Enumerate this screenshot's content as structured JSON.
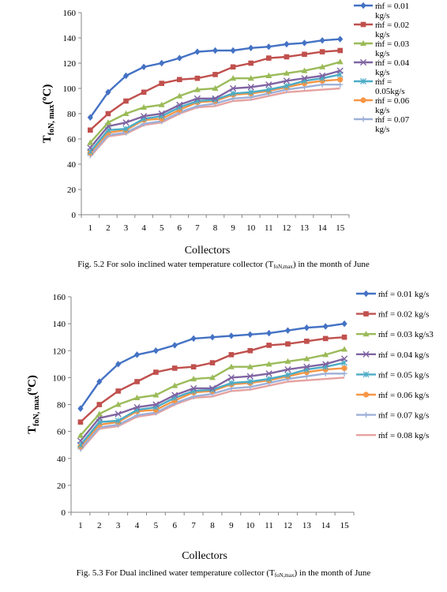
{
  "chart_data": [
    {
      "type": "line",
      "ylabel_main": "T",
      "ylabel_sub": "foN, max",
      "ylabel_unit": "(ºC)",
      "xlabel": "Collectors",
      "caption": "Fig. 5.2 For solo inclined water temperature collector (T",
      "caption_sub": "foN,max",
      "caption_end": ") in the month of June",
      "ylim": [
        0,
        160
      ],
      "yticks": [
        0,
        20,
        40,
        60,
        80,
        100,
        120,
        140,
        160
      ],
      "categories": [
        "1",
        "2",
        "3",
        "4",
        "5",
        "6",
        "7",
        "8",
        "9",
        "10",
        "11",
        "12",
        "13",
        "14",
        "15"
      ],
      "legend_position": "right",
      "series": [
        {
          "name": "ṁf = 0.01 kg/s",
          "legend_lines": [
            "ṁf = 0.01",
            "kg/s"
          ],
          "color": "#4472C4",
          "marker": "diamond",
          "values": [
            77,
            97,
            110,
            117,
            120,
            124,
            129,
            130,
            130,
            132,
            133,
            135,
            136,
            138,
            139
          ]
        },
        {
          "name": "ṁf = 0.02 kg/s",
          "legend_lines": [
            "ṁf = 0.02",
            "kg/s"
          ],
          "color": "#C0504D",
          "marker": "square",
          "values": [
            67,
            80,
            90,
            97,
            104,
            107,
            108,
            111,
            117,
            120,
            124,
            125,
            127,
            129,
            130
          ]
        },
        {
          "name": "ṁf = 0.03 kg/s",
          "legend_lines": [
            "ṁf = 0.03",
            "kg/s"
          ],
          "color": "#9BBB59",
          "marker": "triangle",
          "values": [
            57,
            73,
            80,
            85,
            87,
            94,
            99,
            100,
            108,
            108,
            110,
            112,
            114,
            117,
            121
          ]
        },
        {
          "name": "ṁf = 0.04 kg/s",
          "legend_lines": [
            "ṁf = 0.04",
            "kg/s"
          ],
          "color": "#8064A2",
          "marker": "x",
          "values": [
            53,
            70,
            73,
            78,
            80,
            87,
            92,
            92,
            100,
            101,
            103,
            106,
            108,
            110,
            114
          ]
        },
        {
          "name": "ṁf = 0.05kg/s",
          "legend_lines": [
            "ṁf =",
            "0.05kg/s"
          ],
          "color": "#4BACC6",
          "marker": "asterisk",
          "values": [
            50,
            67,
            68,
            76,
            78,
            85,
            90,
            91,
            96,
            97,
            99,
            102,
            106,
            108,
            111
          ]
        },
        {
          "name": "ṁf = 0.06 kg/s",
          "legend_lines": [
            "ṁf = 0.06",
            "kg/s"
          ],
          "color": "#F79646",
          "marker": "circle",
          "values": [
            49,
            65,
            67,
            75,
            76,
            83,
            89,
            90,
            95,
            96,
            98,
            101,
            104,
            106,
            107
          ]
        },
        {
          "name": "ṁf = 0.07 kg/s",
          "legend_lines": [
            "ṁf = 0.07",
            "kg/s"
          ],
          "color": "#9DB0D8",
          "marker": "plus",
          "values": [
            47,
            63,
            65,
            72,
            74,
            81,
            86,
            88,
            92,
            93,
            96,
            99,
            101,
            103,
            103
          ]
        },
        {
          "name": "",
          "legend_lines": [],
          "color": "#E6A2A0",
          "marker": "none",
          "values": [
            46,
            62,
            64,
            71,
            73,
            80,
            85,
            86,
            90,
            91,
            94,
            97,
            98,
            99,
            100
          ]
        }
      ]
    },
    {
      "type": "line",
      "ylabel_main": "T",
      "ylabel_sub": "foN, max",
      "ylabel_unit": "(ºC)",
      "xlabel": "Collectors",
      "caption": "Fig. 5.3 For Dual inclined water temperature collector (T",
      "caption_sub": "foN,max",
      "caption_end": ") in the month of June",
      "ylim": [
        0,
        160
      ],
      "yticks": [
        0,
        20,
        40,
        60,
        80,
        100,
        120,
        140,
        160
      ],
      "categories": [
        "1",
        "2",
        "3",
        "4",
        "5",
        "6",
        "7",
        "8",
        "9",
        "10",
        "11",
        "12",
        "13",
        "14",
        "15"
      ],
      "legend_position": "right",
      "series": [
        {
          "name": "ṁf = 0.01 kg/s",
          "legend_lines": [
            "ṁf = 0.01 kg/s"
          ],
          "color": "#4472C4",
          "marker": "diamond",
          "values": [
            77,
            97,
            110,
            117,
            120,
            124,
            129,
            130,
            131,
            132,
            133,
            135,
            137,
            138,
            140
          ]
        },
        {
          "name": "ṁf = 0.02 kg/s",
          "legend_lines": [
            "ṁf = 0.02 kg/s"
          ],
          "color": "#C0504D",
          "marker": "square",
          "values": [
            67,
            80,
            90,
            97,
            104,
            107,
            108,
            111,
            117,
            120,
            124,
            125,
            127,
            129,
            130
          ]
        },
        {
          "name": "ṁf = 0.03 kg/s3",
          "legend_lines": [
            "ṁf = 0.03 kg/s3"
          ],
          "color": "#9BBB59",
          "marker": "triangle",
          "values": [
            57,
            73,
            80,
            85,
            87,
            94,
            99,
            100,
            108,
            108,
            110,
            112,
            114,
            117,
            121
          ]
        },
        {
          "name": "ṁf = 0.04 kg/s",
          "legend_lines": [
            "ṁf = 0.04 kg/s"
          ],
          "color": "#8064A2",
          "marker": "x",
          "values": [
            53,
            70,
            73,
            78,
            80,
            87,
            92,
            92,
            100,
            101,
            103,
            106,
            108,
            110,
            114
          ]
        },
        {
          "name": "ṁf = 0.05 kg/s",
          "legend_lines": [
            "ṁf = 0.05 kg/s"
          ],
          "color": "#4BACC6",
          "marker": "asterisk",
          "values": [
            50,
            67,
            68,
            76,
            78,
            85,
            90,
            91,
            96,
            97,
            99,
            102,
            106,
            108,
            111
          ]
        },
        {
          "name": "ṁf = 0.06 kg/s",
          "legend_lines": [
            "ṁf = 0.06 kg/s"
          ],
          "color": "#F79646",
          "marker": "circle",
          "values": [
            49,
            65,
            67,
            75,
            76,
            83,
            89,
            90,
            95,
            96,
            98,
            101,
            104,
            106,
            107
          ]
        },
        {
          "name": "ṁf = 0.07 kg/s",
          "legend_lines": [
            "ṁf = 0.07 kg/s"
          ],
          "color": "#9DB0D8",
          "marker": "plus",
          "values": [
            47,
            63,
            65,
            72,
            74,
            81,
            86,
            88,
            92,
            93,
            96,
            99,
            101,
            103,
            103
          ]
        },
        {
          "name": "ṁf = 0.08 kg/s",
          "legend_lines": [
            "ṁf = 0.08 kg/s"
          ],
          "color": "#E6A2A0",
          "marker": "none",
          "values": [
            46,
            62,
            64,
            71,
            73,
            80,
            85,
            86,
            90,
            91,
            94,
            97,
            98,
            99,
            100
          ]
        }
      ]
    }
  ]
}
